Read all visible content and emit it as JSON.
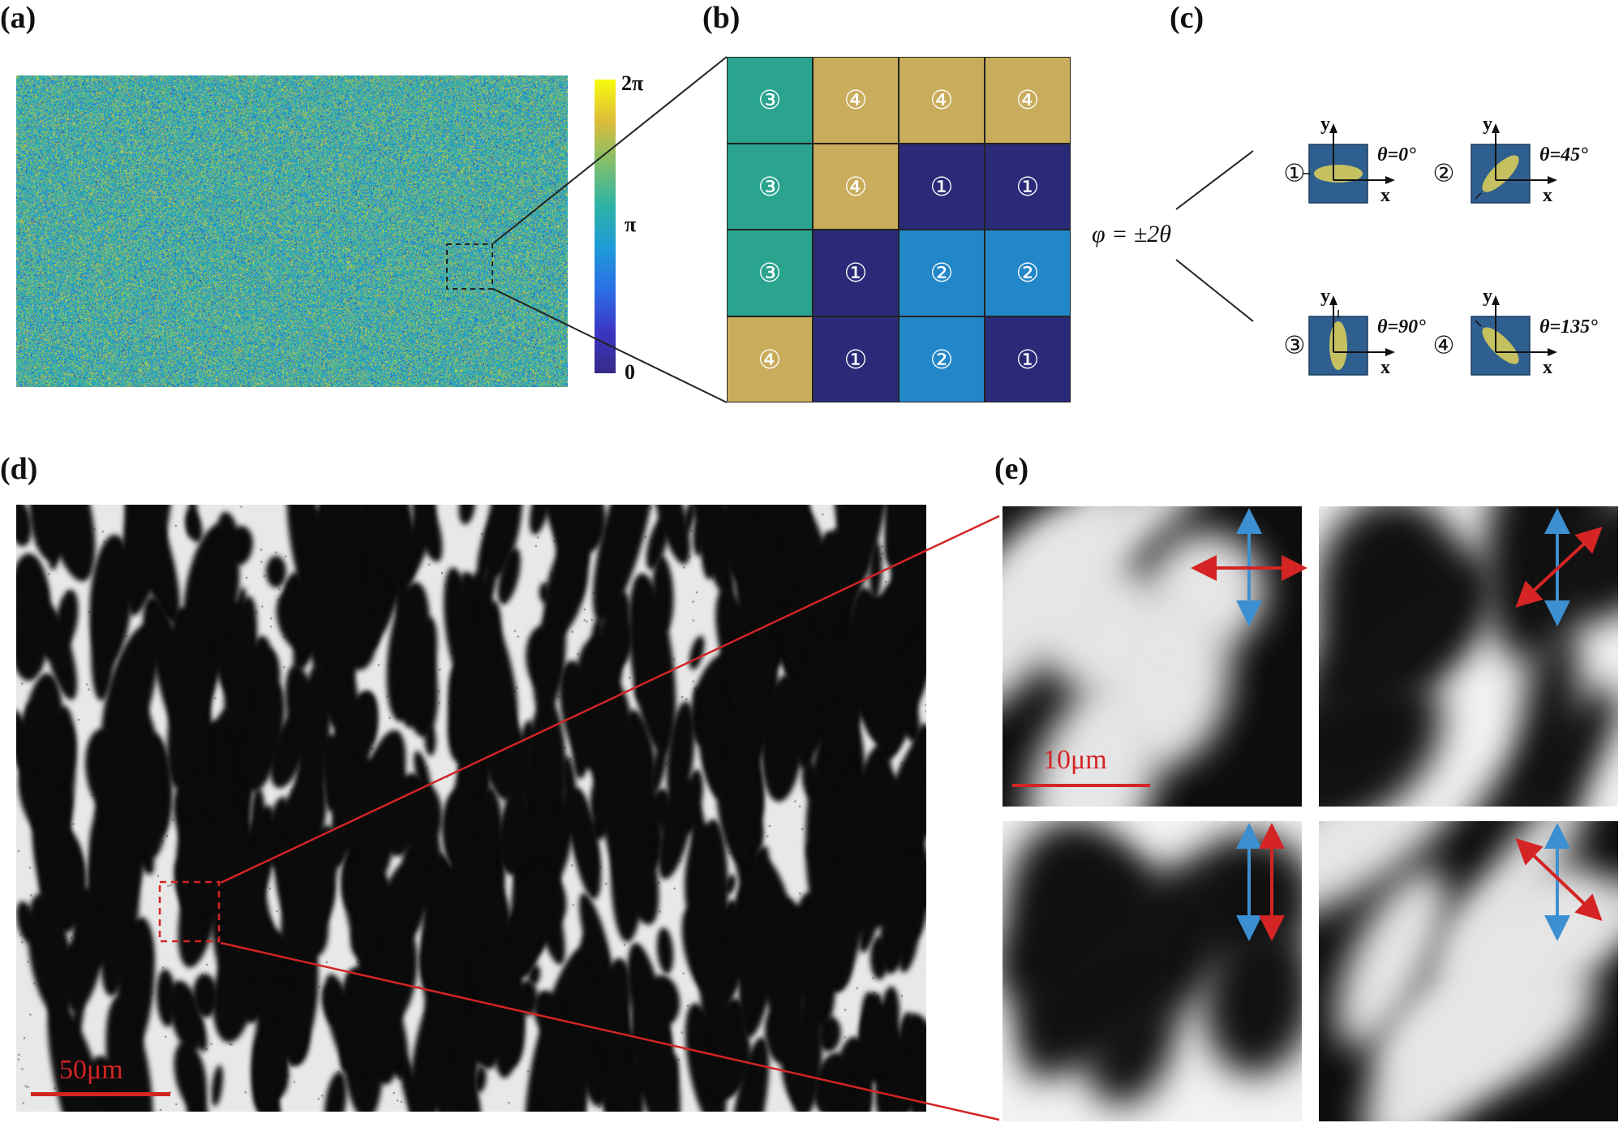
{
  "panels": {
    "a": "(a)",
    "b": "(b)",
    "c": "(c)",
    "d": "(d)",
    "e": "(e)"
  },
  "colorbar": {
    "ticks": [
      "2π",
      "π",
      "0"
    ],
    "colors": [
      "#f9fb0e",
      "#dcbc3a",
      "#7fbf6e",
      "#2db3a4",
      "#1e9bd7",
      "#2c6fe6",
      "#3b36c4",
      "#352a87"
    ]
  },
  "grid": {
    "rows": [
      [
        "③",
        "④",
        "④",
        "④"
      ],
      [
        "③",
        "④",
        "①",
        "①"
      ],
      [
        "③",
        "①",
        "②",
        "②"
      ],
      [
        "④",
        "①",
        "②",
        "①"
      ]
    ],
    "cell_colors": {
      "①": "#2a2a78",
      "②": "#2287c8",
      "③": "#2aa38f",
      "④": "#c9ac5c"
    }
  },
  "relation": {
    "equation": "φ = ±2θ",
    "items": [
      {
        "marker": "①",
        "theta": "θ=0°"
      },
      {
        "marker": "②",
        "theta": "θ=45°"
      },
      {
        "marker": "③",
        "theta": "θ=90°"
      },
      {
        "marker": "④",
        "theta": "θ=135°"
      }
    ],
    "x_axis": "x",
    "y_axis": "y",
    "cell_color": "#2f5f8f",
    "ellipse_color": "#c6c160"
  },
  "micrograph": {
    "scalebar": "50μm"
  },
  "zoom": {
    "scalebar": "10μm",
    "arrow_blue": "#3c8fd0",
    "arrow_red": "#d42424"
  }
}
